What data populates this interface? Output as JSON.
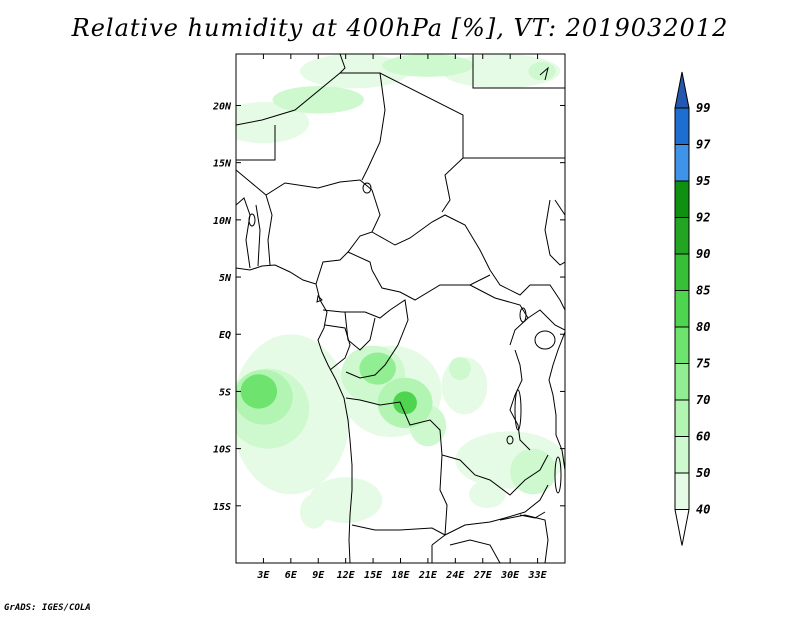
{
  "title": "Relative humidity at 400hPa [%], VT: 2019032012",
  "credit": "GrADS: IGES/COLA",
  "map": {
    "lon_range": [
      0,
      36
    ],
    "lat_range": [
      -20,
      24.5
    ],
    "lon_ticks": [
      {
        "value": 3,
        "label": "3E"
      },
      {
        "value": 6,
        "label": "6E"
      },
      {
        "value": 9,
        "label": "9E"
      },
      {
        "value": 12,
        "label": "12E"
      },
      {
        "value": 15,
        "label": "15E"
      },
      {
        "value": 18,
        "label": "18E"
      },
      {
        "value": 21,
        "label": "21E"
      },
      {
        "value": 24,
        "label": "24E"
      },
      {
        "value": 27,
        "label": "27E"
      },
      {
        "value": 30,
        "label": "30E"
      },
      {
        "value": 33,
        "label": "33E"
      }
    ],
    "lat_ticks": [
      {
        "value": 20,
        "label": "20N"
      },
      {
        "value": 15,
        "label": "15N"
      },
      {
        "value": 10,
        "label": "10N"
      },
      {
        "value": 5,
        "label": "5N"
      },
      {
        "value": 0,
        "label": "EQ"
      },
      {
        "value": -5,
        "label": "5S"
      },
      {
        "value": -10,
        "label": "10S"
      },
      {
        "value": -15,
        "label": "15S"
      }
    ]
  },
  "colorbar": {
    "levels": [
      "99",
      "97",
      "95",
      "92",
      "90",
      "85",
      "80",
      "75",
      "70",
      "60",
      "50",
      "40"
    ],
    "colors": [
      "#1e6ed2",
      "#3f93e8",
      "#109010",
      "#23a523",
      "#37c037",
      "#4fd44f",
      "#6ee46e",
      "#92ee92",
      "#b2f4b2",
      "#cef8ce",
      "#e6fbe6"
    ],
    "top_triangle": "#2458b0",
    "bottom_triangle": "#ffffff"
  },
  "humidity_regions": [
    {
      "level": 50,
      "lon": 3.5,
      "lat": -6.5,
      "rx": 4.5,
      "ry": 3.5
    },
    {
      "level": 60,
      "lon": 3.0,
      "lat": -5.5,
      "rx": 3.2,
      "ry": 2.4
    },
    {
      "level": 75,
      "lon": 2.5,
      "lat": -5.0,
      "rx": 2.0,
      "ry": 1.5
    },
    {
      "level": 40,
      "lon": 6.0,
      "lat": -7.0,
      "rx": 6.5,
      "ry": 7.0
    },
    {
      "level": 50,
      "lon": 15.0,
      "lat": -3.5,
      "rx": 3.5,
      "ry": 2.5
    },
    {
      "level": 70,
      "lon": 15.5,
      "lat": -3.0,
      "rx": 2.0,
      "ry": 1.4
    },
    {
      "level": 60,
      "lon": 18.5,
      "lat": -6.0,
      "rx": 3.0,
      "ry": 2.2
    },
    {
      "level": 80,
      "lon": 18.5,
      "lat": -6.0,
      "rx": 1.3,
      "ry": 1.0
    },
    {
      "level": 40,
      "lon": 17.0,
      "lat": -5.0,
      "rx": 5.5,
      "ry": 4.0
    },
    {
      "level": 50,
      "lon": 21.0,
      "lat": -8.0,
      "rx": 2.0,
      "ry": 1.8
    },
    {
      "level": 50,
      "lon": 24.5,
      "lat": -3.0,
      "rx": 1.2,
      "ry": 1.0
    },
    {
      "level": 40,
      "lon": 25.0,
      "lat": -4.5,
      "rx": 2.5,
      "ry": 2.5
    },
    {
      "level": 40,
      "lon": 30.0,
      "lat": -11.0,
      "rx": 6.0,
      "ry": 2.5
    },
    {
      "level": 50,
      "lon": 32.5,
      "lat": -12.0,
      "rx": 2.5,
      "ry": 2.0
    },
    {
      "level": 40,
      "lon": 12.0,
      "lat": -14.5,
      "rx": 4.0,
      "ry": 2.0
    },
    {
      "level": 40,
      "lon": 3.0,
      "lat": 18.5,
      "rx": 5.0,
      "ry": 1.8
    },
    {
      "level": 50,
      "lon": 9.0,
      "lat": 20.5,
      "rx": 5.0,
      "ry": 1.2
    },
    {
      "level": 40,
      "lon": 13.0,
      "lat": 23.0,
      "rx": 6.0,
      "ry": 1.5
    },
    {
      "level": 50,
      "lon": 21.0,
      "lat": 23.5,
      "rx": 5.0,
      "ry": 1.0
    },
    {
      "level": 40,
      "lon": 29.0,
      "lat": 23.0,
      "rx": 6.5,
      "ry": 1.5
    },
    {
      "level": 50,
      "lon": 33.5,
      "lat": 23.0,
      "rx": 1.5,
      "ry": 0.8
    },
    {
      "level": 40,
      "lon": 27.5,
      "lat": -14.0,
      "rx": 2.0,
      "ry": 1.2
    },
    {
      "level": 40,
      "lon": 8.5,
      "lat": -15.5,
      "rx": 1.5,
      "ry": 1.5
    }
  ]
}
